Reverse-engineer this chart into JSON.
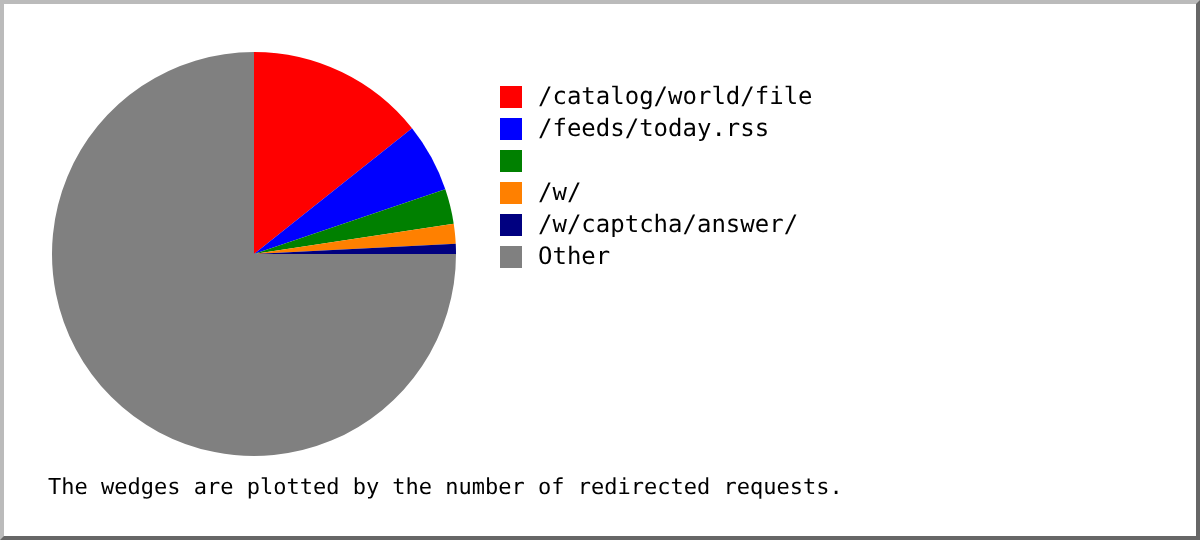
{
  "chart_data": {
    "type": "pie",
    "categories": [
      "/catalog/world/file",
      "/feeds/today.rss",
      null,
      "/w/",
      "/w/captcha/answer/",
      "Other"
    ],
    "values": [
      14.3,
      5.5,
      2.8,
      1.6,
      0.8,
      75
    ],
    "colors": [
      "#ff0000",
      "#0000ff",
      "#008000",
      "#ff8000",
      "#000080",
      "#808080"
    ],
    "legend": "right",
    "annotations": [
      "The wedges are plotted by the number of redirected requests."
    ]
  }
}
